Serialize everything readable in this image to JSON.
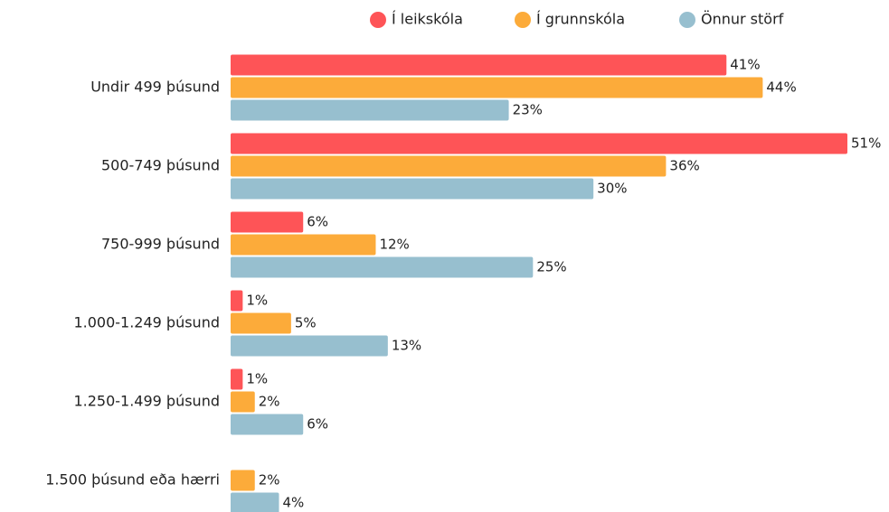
{
  "chart_data": {
    "type": "bar",
    "orientation": "horizontal",
    "categories": [
      "Undir 499 þúsund",
      "500-749 þúsund",
      "750-999 þúsund",
      "1.000-1.249 þúsund",
      "1.250-1.499 þúsund",
      "1.500 þúsund eða hærri"
    ],
    "series": [
      {
        "name": "Í leikskóla",
        "color": "#fe5457",
        "values": [
          41,
          51,
          6,
          1,
          1,
          null
        ],
        "value_labels": [
          "41%",
          "51%",
          "6%",
          "1%",
          "1%",
          null
        ]
      },
      {
        "name": "Í grunnskóla",
        "color": "#fcab3a",
        "values": [
          44,
          36,
          12,
          5,
          2,
          2
        ],
        "value_labels": [
          "44%",
          "36%",
          "12%",
          "5%",
          "2%",
          "2%"
        ]
      },
      {
        "name": "Önnur störf",
        "color": "#97bfcf",
        "values": [
          23,
          30,
          25,
          13,
          6,
          4
        ],
        "value_labels": [
          "23%",
          "30%",
          "25%",
          "13%",
          "6%",
          "4%"
        ]
      }
    ],
    "legend": "top"
  }
}
